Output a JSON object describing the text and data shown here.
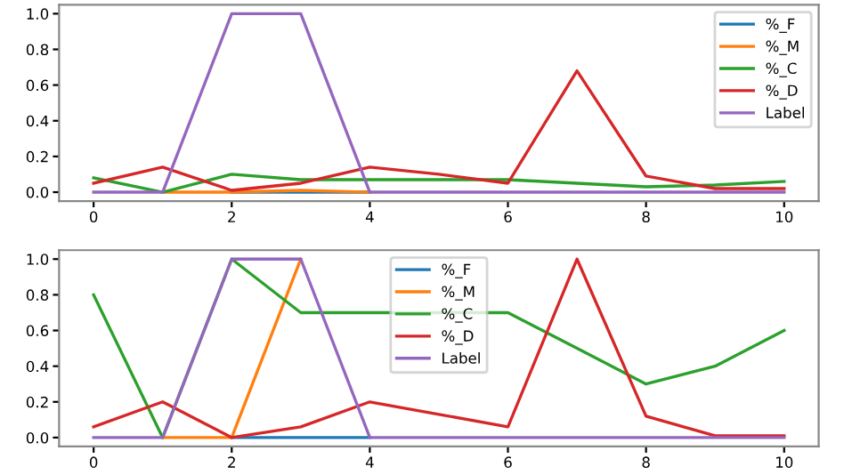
{
  "chart_data": [
    {
      "type": "line",
      "x": [
        0,
        1,
        2,
        3,
        4,
        5,
        6,
        7,
        8,
        9,
        10
      ],
      "xlim": [
        -0.5,
        10.5
      ],
      "xticks": [
        0,
        2,
        4,
        6,
        8,
        10
      ],
      "ylim": [
        -0.05,
        1.05
      ],
      "yticks": [
        {
          "value": 0,
          "label": "0.0"
        },
        {
          "value": 0.2,
          "label": "0.2"
        },
        {
          "value": 0.4,
          "label": "0.4"
        },
        {
          "value": 0.6,
          "label": "0.6"
        },
        {
          "value": 0.8,
          "label": "0.8"
        },
        {
          "value": 1,
          "label": "1.0"
        }
      ],
      "legend": "top right",
      "grid": false,
      "series": [
        {
          "name": "%_F",
          "color": "#1f77b4",
          "values": [
            null,
            null,
            0,
            0,
            0,
            null,
            null,
            null,
            null,
            null,
            null
          ]
        },
        {
          "name": "%_M",
          "color": "#ff7f0e",
          "values": [
            null,
            0,
            0,
            0.01,
            0,
            null,
            null,
            null,
            null,
            null,
            null
          ]
        },
        {
          "name": "%_C",
          "color": "#2ca02c",
          "values": [
            0.08,
            0,
            0.1,
            0.07,
            0.07,
            0.07,
            0.07,
            0.05,
            0.03,
            0.04,
            0.06
          ]
        },
        {
          "name": "%_D",
          "color": "#d62728",
          "values": [
            0.05,
            0.14,
            0.01,
            0.05,
            0.14,
            0.1,
            0.05,
            0.68,
            0.09,
            0.02,
            0.02
          ]
        },
        {
          "name": "Label",
          "color": "#9467bd",
          "values": [
            0,
            0,
            1,
            1,
            0,
            0,
            0,
            0,
            0,
            0,
            0
          ]
        }
      ]
    },
    {
      "type": "line",
      "x": [
        0,
        1,
        2,
        3,
        4,
        5,
        6,
        7,
        8,
        9,
        10
      ],
      "xlim": [
        -0.5,
        10.5
      ],
      "xticks": [
        0,
        2,
        4,
        6,
        8,
        10
      ],
      "ylim": [
        -0.05,
        1.05
      ],
      "yticks": [
        {
          "value": 0,
          "label": "0.0"
        },
        {
          "value": 0.2,
          "label": "0.2"
        },
        {
          "value": 0.4,
          "label": "0.4"
        },
        {
          "value": 0.6,
          "label": "0.6"
        },
        {
          "value": 0.8,
          "label": "0.8"
        },
        {
          "value": 1,
          "label": "1.0"
        }
      ],
      "legend": "top",
      "grid": false,
      "series": [
        {
          "name": "%_F",
          "color": "#1f77b4",
          "values": [
            null,
            null,
            0,
            0,
            0,
            null,
            null,
            null,
            null,
            null,
            null
          ]
        },
        {
          "name": "%_M",
          "color": "#ff7f0e",
          "values": [
            null,
            0,
            0,
            1,
            null,
            null,
            null,
            null,
            null,
            null,
            null
          ]
        },
        {
          "name": "%_C",
          "color": "#2ca02c",
          "values": [
            0.8,
            0,
            1,
            0.7,
            0.7,
            0.7,
            0.7,
            0.5,
            0.3,
            0.4,
            0.6
          ]
        },
        {
          "name": "%_D",
          "color": "#d62728",
          "values": [
            0.06,
            0.2,
            0,
            0.06,
            0.2,
            0.13,
            0.06,
            1,
            0.12,
            0.01,
            0.01
          ]
        },
        {
          "name": "Label",
          "color": "#9467bd",
          "values": [
            0,
            0,
            1,
            1,
            0,
            0,
            0,
            0,
            0,
            0,
            0
          ]
        }
      ]
    }
  ]
}
